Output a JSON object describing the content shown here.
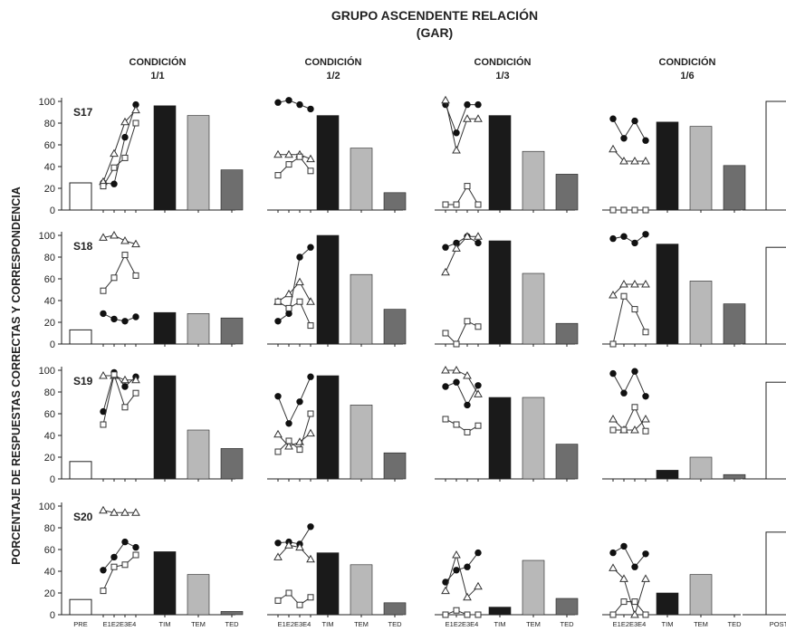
{
  "chart_data": {
    "type": "mixed-line-bar",
    "title": "GRUPO ASCENDENTE RELACIÓN",
    "subtitle": "(GAR)",
    "ylabel": "PORCENTAJE DE RESPUESTAS CORRECTAS Y CORRESPONDENCIA",
    "ylim": [
      0,
      100
    ],
    "yticks": [
      "0",
      "20",
      "40",
      "60",
      "80",
      "100"
    ],
    "conditions": [
      {
        "label": "CONDICIÓN",
        "ratio": "1/1"
      },
      {
        "label": "CONDICIÓN",
        "ratio": "1/2"
      },
      {
        "label": "CONDICIÓN",
        "ratio": "1/3"
      },
      {
        "label": "CONDICIÓN",
        "ratio": "1/6"
      }
    ],
    "sessions": [
      "E1",
      "E2",
      "E3",
      "E4"
    ],
    "bar_labels": [
      "TIM",
      "TEM",
      "TED"
    ],
    "pre_label": "PRE",
    "post_label": "POST",
    "bar_colors": {
      "TIM": "#1a1a1a",
      "TEM": "#b8b8b8",
      "TED": "#6e6e6e"
    },
    "subjects": [
      {
        "name": "S17",
        "pre": 25,
        "post": 100,
        "conditions": [
          {
            "circle": [
              25,
              24,
              67,
              97
            ],
            "triangle": [
              26,
              52,
              81,
              92
            ],
            "square": [
              22,
              39,
              48,
              80
            ],
            "bars": [
              96,
              87,
              37
            ]
          },
          {
            "circle": [
              99,
              101,
              97,
              93
            ],
            "triangle": [
              51,
              51,
              51,
              47
            ],
            "square": [
              32,
              42,
              49,
              36
            ],
            "bars": [
              87,
              57,
              16
            ]
          },
          {
            "circle": [
              97,
              71,
              97,
              97
            ],
            "triangle": [
              101,
              55,
              84,
              84
            ],
            "square": [
              5,
              5,
              22,
              5
            ],
            "bars": [
              87,
              54,
              33
            ]
          },
          {
            "circle": [
              84,
              66,
              82,
              64
            ],
            "triangle": [
              56,
              45,
              45,
              45
            ],
            "square": [
              0,
              0,
              0,
              0
            ],
            "bars": [
              81,
              77,
              41
            ]
          }
        ]
      },
      {
        "name": "S18",
        "pre": 13,
        "post": 89,
        "conditions": [
          {
            "circle": [
              28,
              23,
              21,
              25
            ],
            "triangle": [
              98,
              100,
              95,
              92
            ],
            "square": [
              49,
              61,
              82,
              63
            ],
            "bars": [
              29,
              28,
              24
            ]
          },
          {
            "circle": [
              21,
              28,
              80,
              89
            ],
            "triangle": [
              39,
              46,
              57,
              39
            ],
            "square": [
              39,
              33,
              39,
              17
            ],
            "bars": [
              100,
              64,
              32
            ]
          },
          {
            "circle": [
              89,
              93,
              99,
              93
            ],
            "triangle": [
              66,
              88,
              99,
              99
            ],
            "square": [
              10,
              0,
              21,
              16
            ],
            "bars": [
              95,
              65,
              19
            ]
          },
          {
            "circle": [
              97,
              99,
              93,
              101
            ],
            "triangle": [
              45,
              55,
              55,
              55
            ],
            "square": [
              0,
              44,
              32,
              11
            ],
            "bars": [
              92,
              58,
              37
            ]
          }
        ]
      },
      {
        "name": "S19",
        "pre": 16,
        "post": 89,
        "conditions": [
          {
            "circle": [
              62,
              98,
              85,
              94
            ],
            "triangle": [
              95,
              95,
              91,
              91
            ],
            "square": [
              50,
              96,
              66,
              79
            ],
            "bars": [
              95,
              45,
              28
            ]
          },
          {
            "circle": [
              76,
              51,
              71,
              94
            ],
            "triangle": [
              41,
              30,
              34,
              42
            ],
            "square": [
              25,
              35,
              27,
              60
            ],
            "bars": [
              95,
              68,
              24
            ]
          },
          {
            "circle": [
              85,
              89,
              68,
              86
            ],
            "triangle": [
              100,
              100,
              95,
              78
            ],
            "square": [
              55,
              50,
              43,
              49
            ],
            "bars": [
              75,
              75,
              32
            ]
          },
          {
            "circle": [
              97,
              79,
              99,
              76
            ],
            "triangle": [
              55,
              45,
              45,
              55
            ],
            "square": [
              45,
              45,
              66,
              44
            ],
            "bars": [
              8,
              20,
              4
            ]
          }
        ]
      },
      {
        "name": "S20",
        "pre": 14,
        "post": 76,
        "conditions": [
          {
            "circle": [
              41,
              53,
              67,
              62
            ],
            "triangle": [
              96,
              94,
              94,
              94
            ],
            "square": [
              22,
              44,
              46,
              55
            ],
            "bars": [
              58,
              37,
              3
            ]
          },
          {
            "circle": [
              66,
              67,
              65,
              81
            ],
            "triangle": [
              53,
              64,
              62,
              51
            ],
            "square": [
              13,
              20,
              9,
              16
            ],
            "bars": [
              57,
              46,
              11
            ]
          },
          {
            "circle": [
              30,
              41,
              44,
              57
            ],
            "triangle": [
              22,
              55,
              16,
              26
            ],
            "square": [
              0,
              4,
              0,
              0
            ],
            "bars": [
              7,
              50,
              15
            ]
          },
          {
            "circle": [
              57,
              63,
              44,
              56
            ],
            "triangle": [
              43,
              33,
              0,
              33
            ],
            "square": [
              0,
              12,
              12,
              0
            ],
            "bars": [
              20,
              37,
              0
            ]
          }
        ]
      }
    ]
  }
}
